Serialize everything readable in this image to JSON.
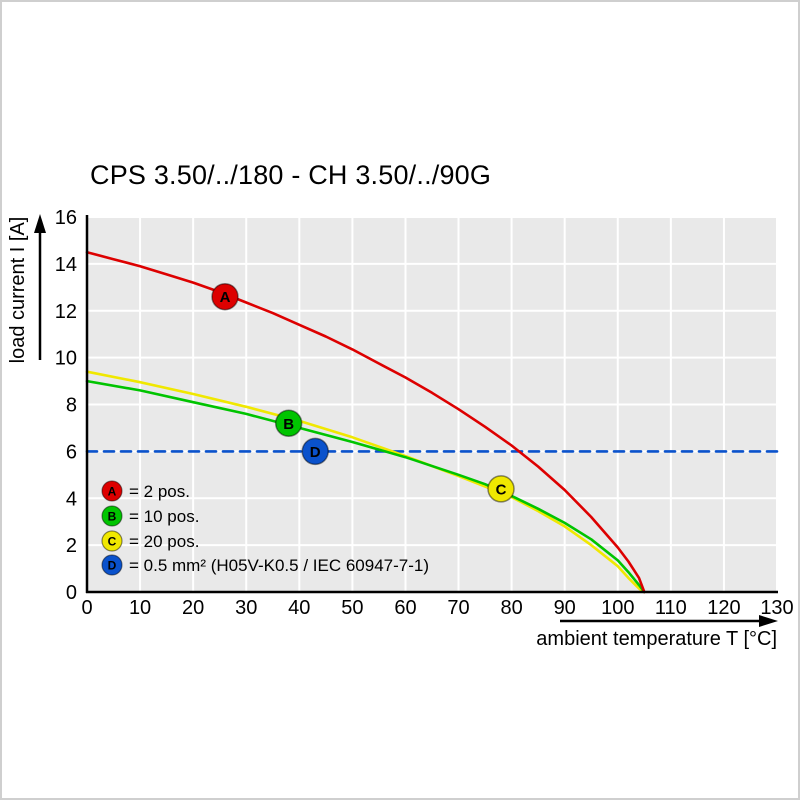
{
  "title": "CPS 3.50/../180 - CH 3.50/../90G",
  "chart_data": {
    "type": "line",
    "title": "CPS 3.50/../180 - CH 3.50/../90G",
    "xlabel": "ambient temperature T [°C]",
    "ylabel": "load current I [A]",
    "xlim": [
      0,
      130
    ],
    "ylim": [
      0,
      16
    ],
    "x_ticks": [
      0,
      10,
      20,
      30,
      40,
      50,
      60,
      70,
      80,
      90,
      100,
      110,
      120,
      130
    ],
    "y_ticks": [
      0,
      2,
      4,
      6,
      8,
      10,
      12,
      14,
      16
    ],
    "grid": true,
    "plot_bg": "#e9e9e9",
    "grid_color": "#ffffff",
    "legend_position": "lower-left-inside",
    "series": [
      {
        "name": "A",
        "label": "= 2 pos.",
        "color": "#dd0000",
        "dashed": false,
        "marker_at": [
          26,
          12.6
        ],
        "points": [
          [
            0,
            14.5
          ],
          [
            5,
            14.2
          ],
          [
            10,
            13.9
          ],
          [
            15,
            13.55
          ],
          [
            20,
            13.2
          ],
          [
            25,
            12.8
          ],
          [
            30,
            12.35
          ],
          [
            35,
            11.9
          ],
          [
            40,
            11.4
          ],
          [
            45,
            10.9
          ],
          [
            50,
            10.35
          ],
          [
            55,
            9.75
          ],
          [
            60,
            9.15
          ],
          [
            65,
            8.5
          ],
          [
            70,
            7.8
          ],
          [
            75,
            7.05
          ],
          [
            80,
            6.25
          ],
          [
            85,
            5.35
          ],
          [
            90,
            4.35
          ],
          [
            95,
            3.2
          ],
          [
            100,
            1.9
          ],
          [
            102,
            1.3
          ],
          [
            104,
            0.6
          ],
          [
            105,
            0
          ]
        ]
      },
      {
        "name": "B",
        "label": "= 10 pos.",
        "color": "#00c400",
        "dashed": false,
        "marker_at": [
          38,
          7.2
        ],
        "points": [
          [
            0,
            9.0
          ],
          [
            10,
            8.6
          ],
          [
            20,
            8.1
          ],
          [
            30,
            7.6
          ],
          [
            40,
            7.0
          ],
          [
            50,
            6.4
          ],
          [
            60,
            5.75
          ],
          [
            70,
            5.0
          ],
          [
            75,
            4.6
          ],
          [
            80,
            4.1
          ],
          [
            85,
            3.55
          ],
          [
            90,
            2.95
          ],
          [
            95,
            2.25
          ],
          [
            100,
            1.35
          ],
          [
            102,
            0.85
          ],
          [
            104,
            0.3
          ],
          [
            105,
            0
          ]
        ]
      },
      {
        "name": "C",
        "label": "= 20 pos.",
        "color": "#f0e800",
        "dashed": false,
        "marker_at": [
          78,
          4.4
        ],
        "points": [
          [
            0,
            9.4
          ],
          [
            10,
            8.95
          ],
          [
            20,
            8.45
          ],
          [
            30,
            7.9
          ],
          [
            40,
            7.3
          ],
          [
            50,
            6.6
          ],
          [
            60,
            5.8
          ],
          [
            70,
            4.95
          ],
          [
            75,
            4.5
          ],
          [
            80,
            4.05
          ],
          [
            85,
            3.45
          ],
          [
            90,
            2.8
          ],
          [
            95,
            2.0
          ],
          [
            100,
            1.1
          ],
          [
            102,
            0.6
          ],
          [
            104,
            0.15
          ],
          [
            105,
            0
          ]
        ]
      },
      {
        "name": "D",
        "label": "= 0.5 mm² (H05V-K0.5 / IEC 60947-7-1)",
        "color": "#0a52cc",
        "dashed": true,
        "marker_at": [
          43,
          6
        ],
        "points": [
          [
            0,
            6
          ],
          [
            130,
            6
          ]
        ]
      }
    ]
  }
}
